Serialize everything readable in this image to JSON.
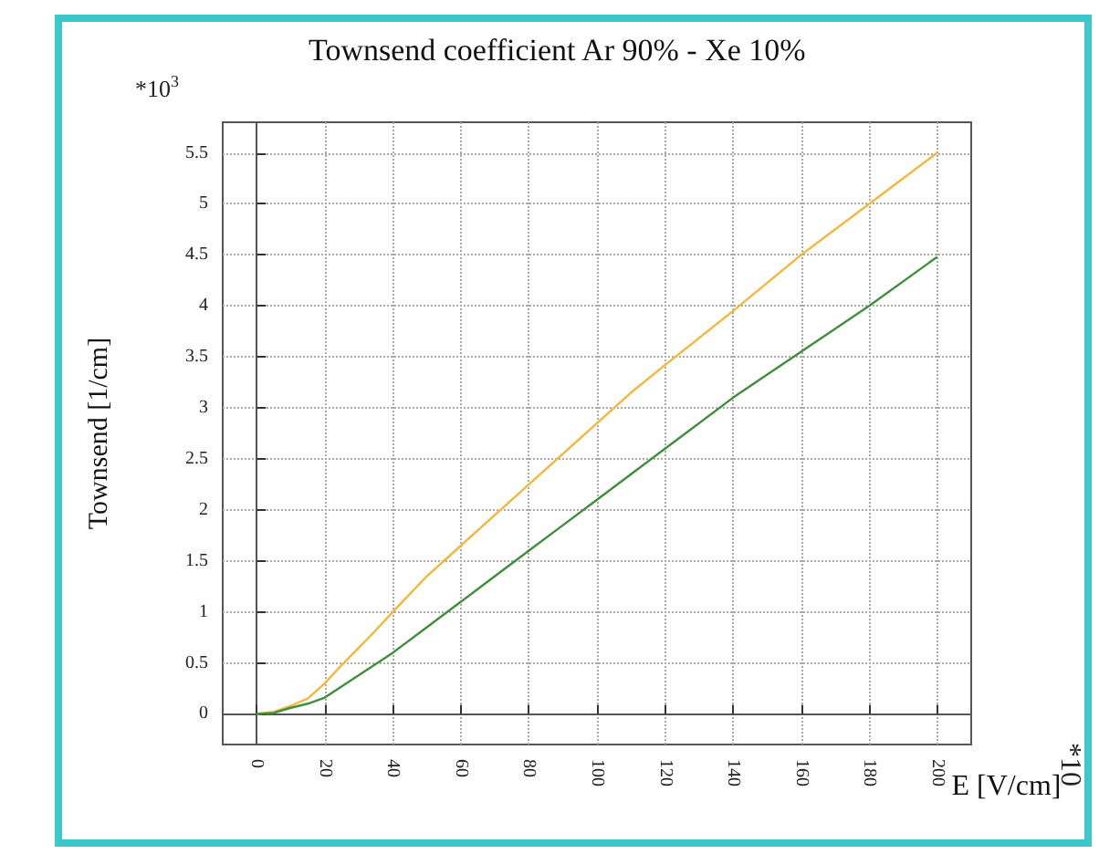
{
  "chart_data": {
    "type": "line",
    "title": "Townsend coefficient Ar 90% - Xe 10%",
    "xlabel": "E [V/cm]",
    "ylabel": "Townsend [1/cm]",
    "annotations": [
      "*10$^{3}$",
      "*10"
    ],
    "xlim": [
      -10,
      210
    ],
    "xticks": [
      0,
      20,
      40,
      60,
      80,
      100,
      120,
      140,
      160,
      180,
      200
    ],
    "ylim": [
      -0.3,
      5.8
    ],
    "yticks": [
      0,
      0.5,
      1,
      1.5,
      2,
      2.5,
      3,
      3.5,
      4,
      4.5,
      5,
      5.5
    ],
    "grid": true,
    "marker": "none",
    "line_style": "solid",
    "series": [
      {
        "color": "#f5b63c",
        "x": [
          0,
          5,
          10,
          15,
          20,
          25,
          30,
          35,
          40,
          50,
          60,
          70,
          80,
          90,
          100,
          110,
          120,
          140,
          160,
          180,
          200
        ],
        "values": [
          0,
          0.02,
          0.08,
          0.15,
          0.3,
          0.48,
          0.65,
          0.82,
          1.0,
          1.35,
          1.65,
          1.95,
          2.25,
          2.55,
          2.85,
          3.15,
          3.42,
          3.95,
          4.5,
          5.0,
          5.5
        ]
      },
      {
        "color": "#3f8f3a",
        "x": [
          0,
          5,
          10,
          15,
          20,
          30,
          40,
          50,
          60,
          70,
          80,
          90,
          100,
          110,
          120,
          140,
          160,
          180,
          200
        ],
        "values": [
          0,
          0.01,
          0.06,
          0.1,
          0.16,
          0.38,
          0.6,
          0.85,
          1.1,
          1.35,
          1.6,
          1.85,
          2.1,
          2.35,
          2.6,
          3.1,
          3.55,
          4.0,
          4.48
        ]
      }
    ]
  }
}
